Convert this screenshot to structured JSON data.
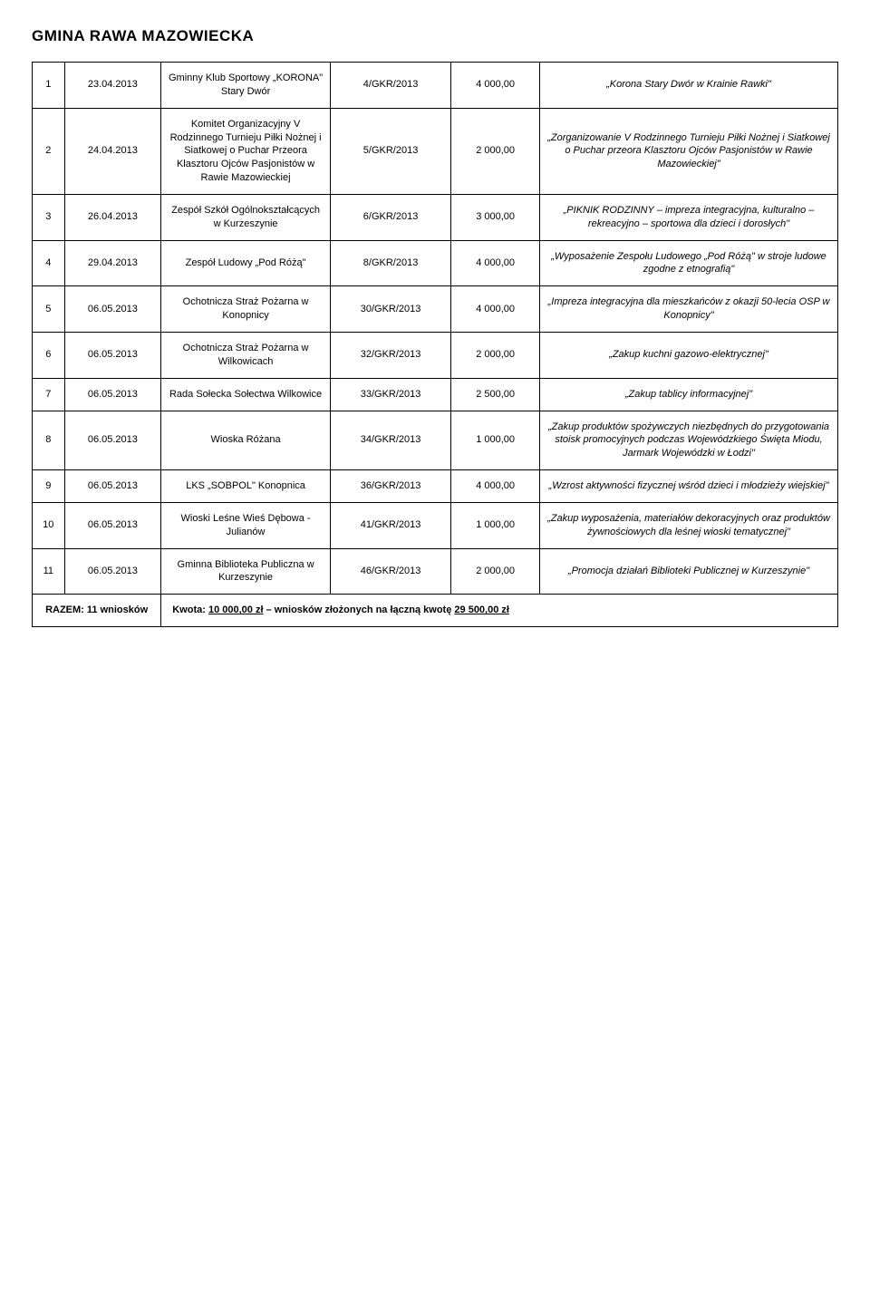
{
  "title": "GMINA RAWA MAZOWIECKA",
  "rows": [
    {
      "n": "1",
      "date": "23.04.2013",
      "applicant": "Gminny Klub Sportowy „KORONA\" Stary Dwór",
      "ref": "4/GKR/2013",
      "amount": "4 000,00",
      "desc": "„Korona Stary Dwór w Krainie Rawki\""
    },
    {
      "n": "2",
      "date": "24.04.2013",
      "applicant": "Komitet Organizacyjny V Rodzinnego Turnieju Piłki Nożnej i Siatkowej o Puchar Przeora Klasztoru Ojców Pasjonistów w Rawie Mazowieckiej",
      "ref": "5/GKR/2013",
      "amount": "2 000,00",
      "desc": "„Zorganizowanie V Rodzinnego Turnieju Piłki Nożnej i Siatkowej o Puchar przeora Klasztoru Ojców Pasjonistów w Rawie Mazowieckiej\""
    },
    {
      "n": "3",
      "date": "26.04.2013",
      "applicant": "Zespół Szkół Ogólnokształcących w Kurzeszynie",
      "ref": "6/GKR/2013",
      "amount": "3 000,00",
      "desc": "„PIKNIK RODZINNY – impreza integracyjna, kulturalno – rekreacyjno – sportowa dla dzieci i dorosłych\""
    },
    {
      "n": "4",
      "date": "29.04.2013",
      "applicant": "Zespół Ludowy „Pod Różą\"",
      "ref": "8/GKR/2013",
      "amount": "4 000,00",
      "desc": "„Wyposażenie Zespołu Ludowego „Pod Różą\" w stroje ludowe zgodne z etnografią\""
    },
    {
      "n": "5",
      "date": "06.05.2013",
      "applicant": "Ochotnicza Straż Pożarna w Konopnicy",
      "ref": "30/GKR/2013",
      "amount": "4 000,00",
      "desc": "„Impreza integracyjna dla mieszkańców z okazji 50-lecia OSP w Konopnicy\""
    },
    {
      "n": "6",
      "date": "06.05.2013",
      "applicant": "Ochotnicza Straż Pożarna w Wilkowicach",
      "ref": "32/GKR/2013",
      "amount": "2 000,00",
      "desc": "„Zakup kuchni gazowo-elektrycznej\""
    },
    {
      "n": "7",
      "date": "06.05.2013",
      "applicant": "Rada Sołecka Sołectwa Wilkowice",
      "ref": "33/GKR/2013",
      "amount": "2 500,00",
      "desc": "„Zakup tablicy informacyjnej\""
    },
    {
      "n": "8",
      "date": "06.05.2013",
      "applicant": "Wioska Różana",
      "ref": "34/GKR/2013",
      "amount": "1 000,00",
      "desc": "„Zakup produktów spożywczych niezbędnych do przygotowania stoisk promocyjnych podczas Wojewódzkiego Święta Miodu, Jarmark Wojewódzki w Łodzi\""
    },
    {
      "n": "9",
      "date": "06.05.2013",
      "applicant": "LKS „SOBPOL\" Konopnica",
      "ref": "36/GKR/2013",
      "amount": "4 000,00",
      "desc": "„Wzrost aktywności fizycznej wśród dzieci i młodzieży wiejskiej\""
    },
    {
      "n": "10",
      "date": "06.05.2013",
      "applicant": "Wioski Leśne Wieś Dębowa - Julianów",
      "ref": "41/GKR/2013",
      "amount": "1 000,00",
      "desc": "„Zakup wyposażenia, materiałów dekoracyjnych oraz produktów żywnościowych dla leśnej wioski tematycznej\""
    },
    {
      "n": "11",
      "date": "06.05.2013",
      "applicant": "Gminna Biblioteka Publiczna w Kurzeszynie",
      "ref": "46/GKR/2013",
      "amount": "2 000,00",
      "desc": "„Promocja działań Biblioteki Publicznej w Kurzeszynie\""
    }
  ],
  "summary": {
    "label": "RAZEM: 11 wniosków",
    "prefix": "Kwota: ",
    "amount": "10 000,00 zł",
    "mid": " – wniosków złożonych na łączną kwotę ",
    "total": "29 500,00 zł"
  }
}
